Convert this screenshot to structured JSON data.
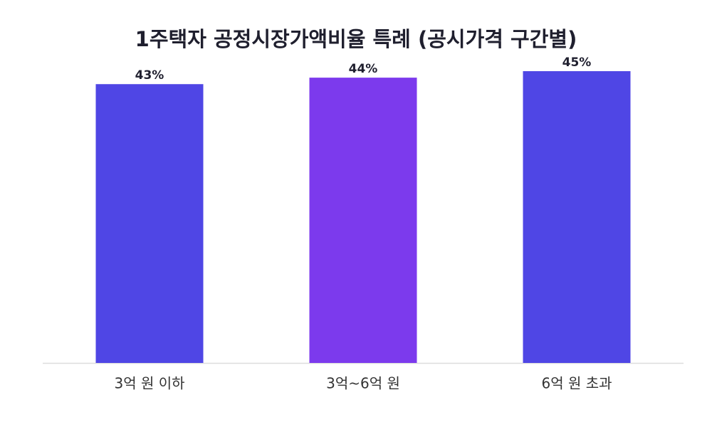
{
  "chart_data": {
    "type": "bar",
    "title": "1주택자 공정시장가액비율 특례 (공시가격 구간별)",
    "categories": [
      "3억 원 이하",
      "3억~6억 원",
      "6억 원 초과"
    ],
    "values": [
      43,
      44,
      45
    ],
    "value_labels": [
      "43%",
      "44%",
      "45%"
    ],
    "colors": [
      "#4f46e5",
      "#7c3aed",
      "#4f46e5"
    ]
  }
}
